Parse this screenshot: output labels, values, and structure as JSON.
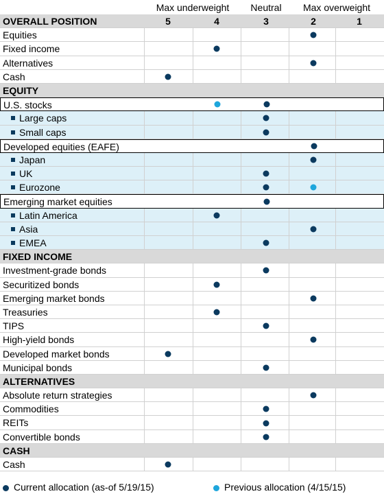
{
  "header": {
    "max_underweight": "Max underweight",
    "neutral": "Neutral",
    "max_overweight": "Max overweight"
  },
  "rows": [
    {
      "label": "OVERALL POSITION",
      "type": "section",
      "numbers": [
        "5",
        "4",
        "3",
        "2",
        "1"
      ]
    },
    {
      "label": "Equities",
      "type": "item",
      "current": 2
    },
    {
      "label": "Fixed income",
      "type": "item",
      "current": 4
    },
    {
      "label": "Alternatives",
      "type": "item",
      "current": 2
    },
    {
      "label": "Cash",
      "type": "item",
      "current": 5
    },
    {
      "label": "EQUITY",
      "type": "section"
    },
    {
      "label": "U.S. stocks",
      "type": "parent",
      "current": 3,
      "previous": 4
    },
    {
      "label": "Large caps",
      "type": "sub",
      "current": 3
    },
    {
      "label": "Small caps",
      "type": "sub",
      "current": 3
    },
    {
      "label": "Developed equities (EAFE)",
      "type": "parent",
      "current": 2
    },
    {
      "label": "Japan",
      "type": "sub",
      "current": 2
    },
    {
      "label": "UK",
      "type": "sub",
      "current": 3
    },
    {
      "label": "Eurozone",
      "type": "sub",
      "current": 3,
      "previous": 2
    },
    {
      "label": "Emerging market equities",
      "type": "parent",
      "current": 3
    },
    {
      "label": "Latin America",
      "type": "sub",
      "current": 4
    },
    {
      "label": "Asia",
      "type": "sub",
      "current": 2
    },
    {
      "label": "EMEA",
      "type": "sub",
      "current": 3
    },
    {
      "label": "FIXED INCOME",
      "type": "section"
    },
    {
      "label": "Investment-grade bonds",
      "type": "item",
      "current": 3
    },
    {
      "label": "Securitized bonds",
      "type": "item",
      "current": 4
    },
    {
      "label": "Emerging market bonds",
      "type": "item",
      "current": 2
    },
    {
      "label": "Treasuries",
      "type": "item",
      "current": 4
    },
    {
      "label": "TIPS",
      "type": "item",
      "current": 3
    },
    {
      "label": "High-yield bonds",
      "type": "item",
      "current": 2
    },
    {
      "label": "Developed market bonds",
      "type": "item",
      "current": 5
    },
    {
      "label": "Municipal bonds",
      "type": "item",
      "current": 3
    },
    {
      "label": "ALTERNATIVES",
      "type": "section"
    },
    {
      "label": "Absolute return strategies",
      "type": "item",
      "current": 2
    },
    {
      "label": "Commodities",
      "type": "item",
      "current": 3
    },
    {
      "label": "REITs",
      "type": "item",
      "current": 3
    },
    {
      "label": "Convertible bonds",
      "type": "item",
      "current": 3
    },
    {
      "label": "CASH",
      "type": "section"
    },
    {
      "label": "Cash",
      "type": "item",
      "current": 5
    }
  ],
  "legend": {
    "current": "Current allocation (as-of 5/19/15)",
    "previous": "Previous allocation (4/15/15)"
  },
  "colors": {
    "current": "#0b3a5f",
    "previous": "#1ea6dc",
    "section_bg": "#d9d9d9",
    "sub_bg": "#ddf0f8"
  }
}
